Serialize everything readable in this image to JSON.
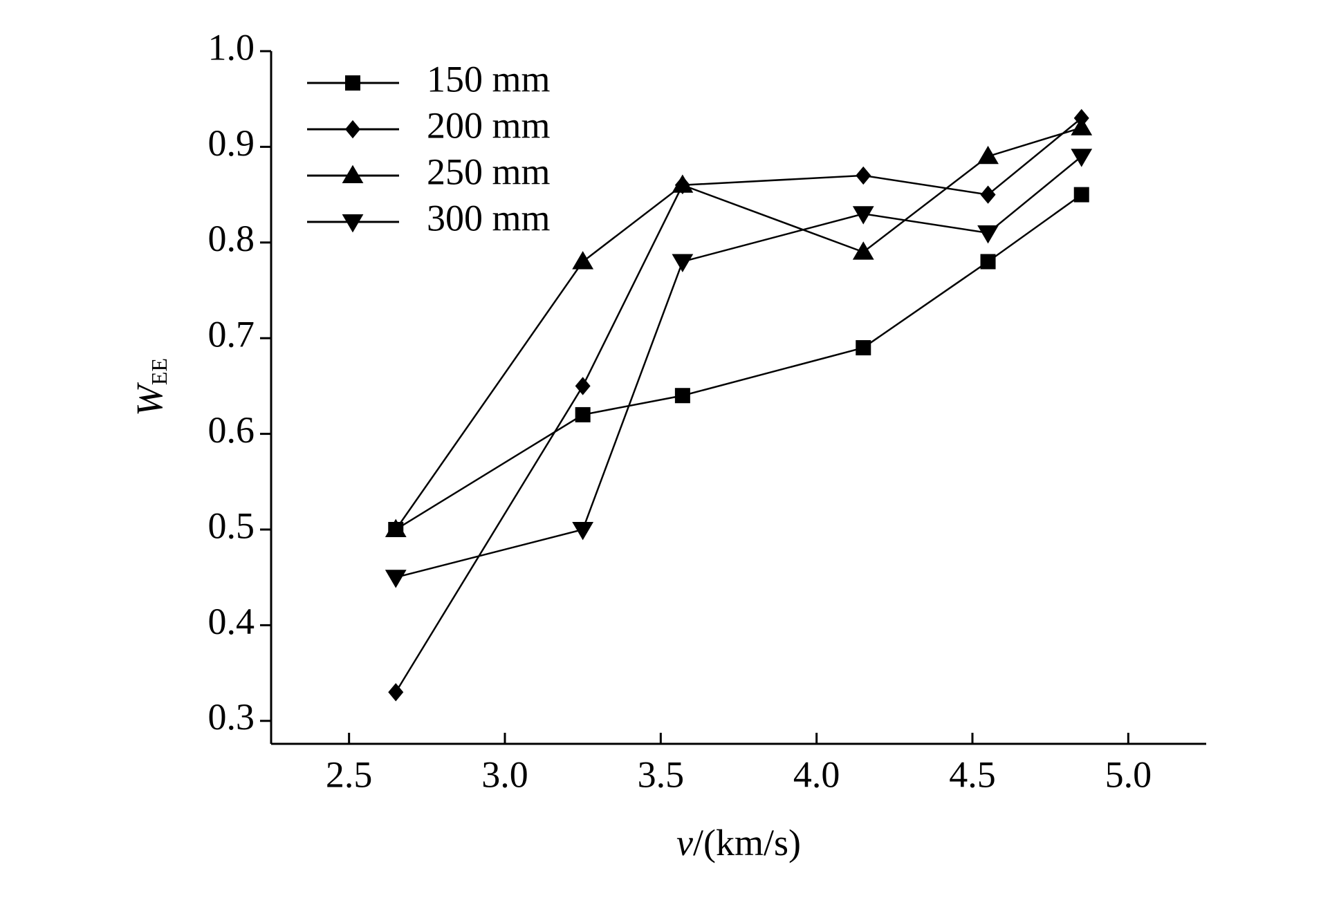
{
  "chart_data": {
    "type": "line",
    "xlabel_var": "v",
    "xlabel_unit": "/(km/s)",
    "ylabel": "W",
    "ylabel_sub": "EE",
    "x": [
      2.65,
      3.25,
      3.57,
      4.15,
      4.55,
      4.85
    ],
    "series": [
      {
        "name": "150 mm",
        "color": "#000000",
        "marker": "square",
        "values": [
          0.5,
          0.62,
          0.64,
          0.69,
          0.78,
          0.85
        ]
      },
      {
        "name": "200 mm",
        "color": "#000000",
        "marker": "diamond",
        "values": [
          0.33,
          0.65,
          0.86,
          0.87,
          0.85,
          0.93
        ]
      },
      {
        "name": "250 mm",
        "color": "#000000",
        "marker": "triangle-up",
        "values": [
          0.5,
          0.78,
          0.86,
          0.79,
          0.89,
          0.92
        ]
      },
      {
        "name": "300 mm",
        "color": "#000000",
        "marker": "triangle-down",
        "values": [
          0.45,
          0.5,
          0.78,
          0.83,
          0.81,
          0.89
        ]
      }
    ],
    "xlim": [
      2.25,
      5.25
    ],
    "xticks": [
      2.5,
      {
        "value": 3,
        "label": "3.0"
      },
      3.5,
      {
        "value": 4,
        "label": "4.0"
      },
      4.5,
      {
        "value": 5,
        "label": "5.0"
      }
    ],
    "ylim": [
      0.276,
      1.0
    ],
    "yticks": [
      {
        "value": 0.3,
        "label": "0.3"
      },
      {
        "value": 0.4,
        "label": "0.4"
      },
      {
        "value": 0.5,
        "label": "0.5"
      },
      {
        "value": 0.6,
        "label": "0.6"
      },
      {
        "value": 0.7,
        "label": "0.7"
      },
      {
        "value": 0.8,
        "label": "0.8"
      },
      {
        "value": 0.9,
        "label": "0.9"
      },
      {
        "value": 1,
        "label": "1.0"
      }
    ],
    "grid": false,
    "legend": "upper left"
  }
}
